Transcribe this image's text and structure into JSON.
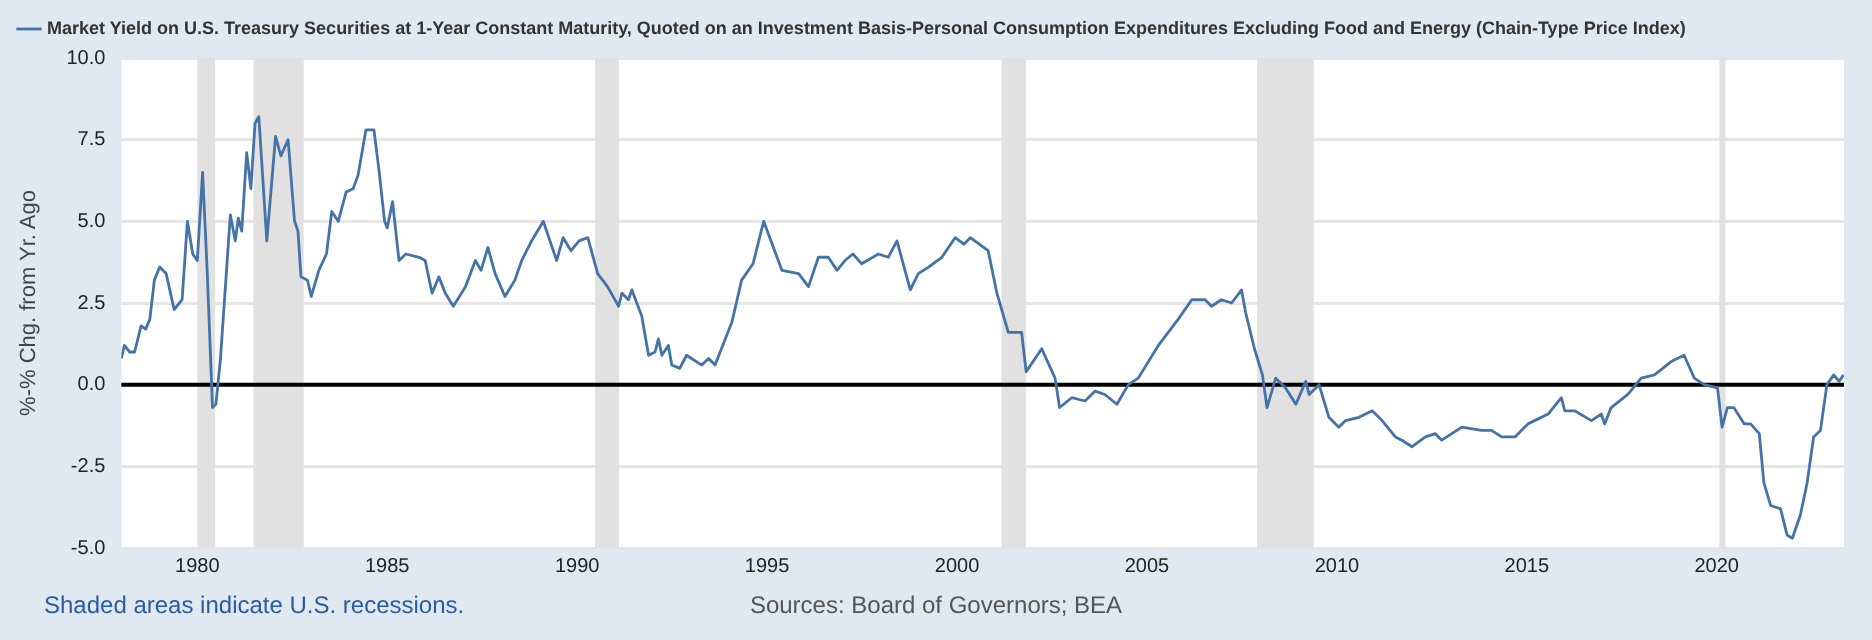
{
  "chart_data": {
    "type": "line",
    "ylabel": "%-% Chg. from Yr. Ago",
    "series": [
      {
        "name": "Market Yield on U.S. Treasury Securities at 1-Year Constant Maturity, Quoted on an Investment Basis-Personal Consumption Expenditures Excluding Food and Energy (Chain-Type Price Index)",
        "color": "#4572a7",
        "x": [
          1978.0,
          1978.08,
          1978.22,
          1978.35,
          1978.52,
          1978.64,
          1978.75,
          1978.87,
          1979.01,
          1979.18,
          1979.39,
          1979.6,
          1979.74,
          1979.88,
          1980.0,
          1980.14,
          1980.26,
          1980.4,
          1980.49,
          1980.61,
          1980.87,
          1981.0,
          1981.08,
          1981.17,
          1981.3,
          1981.41,
          1981.52,
          1981.62,
          1981.83,
          1982.06,
          1982.2,
          1982.39,
          1982.56,
          1982.65,
          1982.73,
          1982.9,
          1983.0,
          1983.2,
          1983.4,
          1983.54,
          1983.71,
          1983.92,
          1984.1,
          1984.23,
          1984.44,
          1984.65,
          1984.79,
          1984.93,
          1985.0,
          1985.14,
          1985.31,
          1985.49,
          1985.84,
          1986.0,
          1986.18,
          1986.36,
          1986.53,
          1986.74,
          1987.06,
          1987.32,
          1987.47,
          1987.65,
          1987.84,
          1988.1,
          1988.36,
          1988.54,
          1988.8,
          1989.11,
          1989.46,
          1989.63,
          1989.84,
          1990.05,
          1990.28,
          1990.54,
          1990.8,
          1991.09,
          1991.18,
          1991.35,
          1991.44,
          1991.7,
          1991.88,
          1992.05,
          1992.14,
          1992.23,
          1992.4,
          1992.49,
          1992.7,
          1992.88,
          1993.28,
          1993.46,
          1993.63,
          1994.07,
          1994.33,
          1994.63,
          1994.91,
          1995.39,
          1995.83,
          1996.09,
          1996.35,
          1996.61,
          1996.84,
          1997.05,
          1997.26,
          1997.49,
          1997.93,
          1998.19,
          1998.42,
          1998.63,
          1998.77,
          1998.98,
          1999.25,
          1999.6,
          1999.95,
          2000.18,
          2000.35,
          2000.82,
          2001.05,
          2001.35,
          2001.7,
          2001.82,
          2002.23,
          2002.58,
          2002.7,
          2003.02,
          2003.37,
          2003.63,
          2003.89,
          2004.21,
          2004.51,
          2004.77,
          2005.3,
          2005.82,
          2006.18,
          2006.53,
          2006.7,
          2006.96,
          2007.23,
          2007.49,
          2007.6,
          2007.83,
          2008.04,
          2008.16,
          2008.39,
          2008.65,
          2008.92,
          2009.18,
          2009.27,
          2009.53,
          2009.79,
          2010.05,
          2010.23,
          2010.58,
          2010.93,
          2011.19,
          2011.54,
          2011.71,
          2011.98,
          2012.33,
          2012.59,
          2012.76,
          2013.29,
          2013.81,
          2014.07,
          2014.34,
          2014.69,
          2015.03,
          2015.56,
          2015.91,
          2016.0,
          2016.26,
          2016.7,
          2016.96,
          2017.05,
          2017.22,
          2017.66,
          2018.01,
          2018.36,
          2018.79,
          2019.14,
          2019.41,
          2019.67,
          2020.02,
          2020.14,
          2020.28,
          2020.45,
          2020.72,
          2020.89,
          2021.12,
          2021.24,
          2021.42,
          2021.68,
          2021.85,
          2021.99,
          2022.2,
          2022.38,
          2022.55,
          2022.73,
          2022.9,
          2023.08,
          2023.22,
          2023.34
        ],
        "values": [
          0.8,
          1.2,
          1.0,
          1.0,
          1.8,
          1.7,
          2.0,
          3.2,
          3.6,
          3.4,
          2.3,
          2.6,
          5.0,
          4.0,
          3.8,
          6.5,
          3.5,
          -0.7,
          -0.6,
          0.8,
          5.2,
          4.4,
          5.1,
          4.7,
          7.1,
          6.0,
          8.0,
          8.2,
          4.4,
          7.6,
          7.0,
          7.5,
          5.0,
          4.7,
          3.3,
          3.2,
          2.7,
          3.5,
          4.0,
          5.3,
          5.0,
          5.9,
          6.0,
          6.4,
          7.8,
          7.8,
          6.5,
          5.0,
          4.8,
          5.6,
          3.8,
          4.0,
          3.9,
          3.8,
          2.8,
          3.3,
          2.8,
          2.4,
          3.0,
          3.8,
          3.5,
          4.2,
          3.4,
          2.7,
          3.2,
          3.8,
          4.4,
          5.0,
          3.8,
          4.5,
          4.1,
          4.4,
          4.5,
          3.4,
          3.0,
          2.4,
          2.8,
          2.6,
          2.9,
          2.1,
          0.9,
          1.0,
          1.4,
          0.9,
          1.2,
          0.6,
          0.5,
          0.9,
          0.6,
          0.8,
          0.6,
          1.9,
          3.2,
          3.7,
          5.0,
          3.5,
          3.4,
          3.0,
          3.9,
          3.9,
          3.5,
          3.8,
          4.0,
          3.7,
          4.0,
          3.9,
          4.4,
          3.5,
          2.9,
          3.4,
          3.6,
          3.9,
          4.5,
          4.3,
          4.5,
          4.1,
          2.8,
          1.6,
          1.6,
          0.4,
          1.1,
          0.2,
          -0.7,
          -0.4,
          -0.5,
          -0.2,
          -0.3,
          -0.6,
          0.0,
          0.2,
          1.2,
          2.0,
          2.6,
          2.6,
          2.4,
          2.6,
          2.5,
          2.9,
          2.2,
          1.1,
          0.3,
          -0.7,
          0.2,
          -0.1,
          -0.6,
          0.1,
          -0.3,
          0.0,
          -1.0,
          -1.3,
          -1.1,
          -1.0,
          -0.8,
          -1.1,
          -1.6,
          -1.7,
          -1.9,
          -1.6,
          -1.5,
          -1.7,
          -1.3,
          -1.4,
          -1.4,
          -1.6,
          -1.6,
          -1.2,
          -0.9,
          -0.4,
          -0.8,
          -0.8,
          -1.1,
          -0.9,
          -1.2,
          -0.7,
          -0.3,
          0.2,
          0.3,
          0.7,
          0.9,
          0.2,
          0.0,
          -0.1,
          -1.3,
          -0.7,
          -0.7,
          -1.2,
          -1.2,
          -1.5,
          -3.0,
          -3.7,
          -3.8,
          -4.6,
          -4.7,
          -4.0,
          -3.0,
          -1.6,
          -1.4,
          0.0,
          0.3,
          0.1,
          0.3
        ]
      }
    ],
    "xlim": [
      1978.0,
      2023.35
    ],
    "xticks": [
      1980,
      1985,
      1990,
      1995,
      2000,
      2005,
      2010,
      2015,
      2020
    ],
    "ylim": [
      -5,
      10
    ],
    "yticks": [
      {
        "value": -5,
        "label": "-5.0"
      },
      {
        "value": -2.5,
        "label": "-2.5"
      },
      {
        "value": 0,
        "label": "0.0"
      },
      {
        "value": 2.5,
        "label": "2.5"
      },
      {
        "value": 5,
        "label": "5.0"
      },
      {
        "value": 7.5,
        "label": "7.5"
      },
      {
        "value": 10,
        "label": "10.0"
      }
    ],
    "grid": "y",
    "legend": "top left",
    "marker": "none",
    "line_style": "solid",
    "ref_lines": [
      {
        "axis": "y",
        "value": 0,
        "color": "#000000"
      }
    ],
    "bands": [
      {
        "axis": "x",
        "from": 1980.0,
        "to": 1980.47,
        "color": "#e1e1e1"
      },
      {
        "axis": "x",
        "from": 1981.48,
        "to": 1982.8,
        "color": "#e1e1e1"
      },
      {
        "axis": "x",
        "from": 1990.47,
        "to": 1991.1,
        "color": "#e1e1e1"
      },
      {
        "axis": "x",
        "from": 2001.17,
        "to": 2001.82,
        "color": "#e1e1e1"
      },
      {
        "axis": "x",
        "from": 2007.9,
        "to": 2009.39,
        "color": "#e1e1e1"
      },
      {
        "axis": "x",
        "from": 2020.07,
        "to": 2020.23,
        "color": "#e1e1e1"
      }
    ],
    "annotations": [
      "Shaded areas indicate U.S. recessions.",
      "Sources: Board of Governors; BEA"
    ]
  }
}
